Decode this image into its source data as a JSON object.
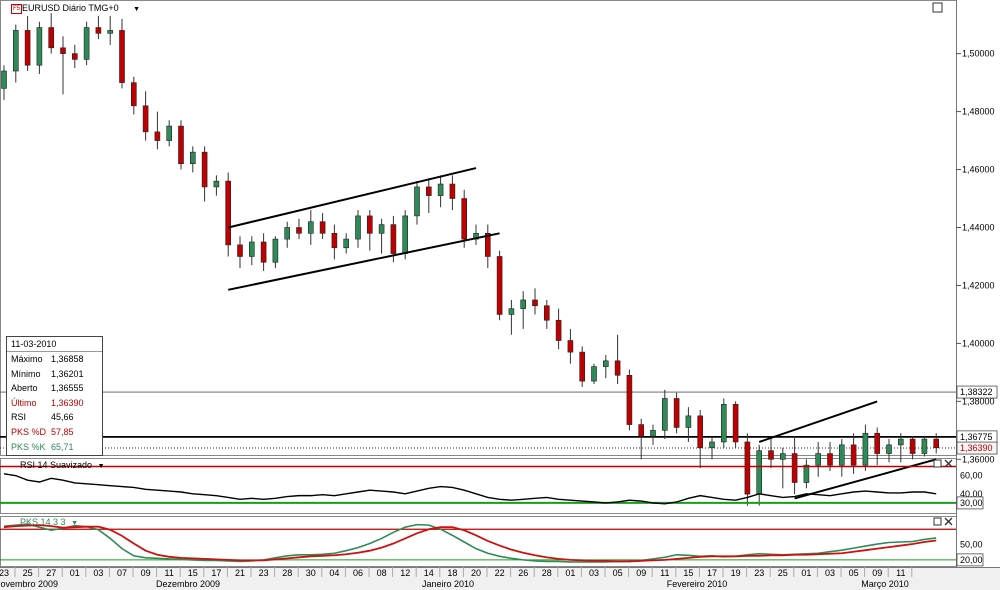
{
  "window": {
    "title": "EURUSD Diário TMG+0",
    "badge": "F5",
    "dropdown_arrow": "▼"
  },
  "info_box": {
    "date": "11-03-2010",
    "rows": [
      {
        "label": "Máximo",
        "value": "1,36858",
        "color": "#000000"
      },
      {
        "label": "Mínimo",
        "value": "1,36201",
        "color": "#000000"
      },
      {
        "label": "Aberto",
        "value": "1,36555",
        "color": "#000000"
      },
      {
        "label": "Último",
        "value": "1,36390",
        "color": "#c00000"
      },
      {
        "label": "RSI",
        "value": "45,66",
        "color": "#000000"
      },
      {
        "label": "PKS %D",
        "value": "57,85",
        "color": "#c00000"
      },
      {
        "label": "PKS %K",
        "value": "65,71",
        "color": "#2e8b57"
      }
    ]
  },
  "rsi_panel": {
    "title": "RSI 14 Suavizado",
    "levels": [
      "60,00",
      "40,00",
      "30,00"
    ]
  },
  "stoch_panel": {
    "title": "PKS 14 3 3",
    "levels": [
      "50,00",
      "20,00"
    ]
  },
  "window_icons": [
    "close-icon",
    "maximize-icon"
  ],
  "chart_data": {
    "type": "candlestick",
    "y_axis_ticks": [
      "1,50000",
      "1,48000",
      "1,46000",
      "1,44000",
      "1,42000",
      "1,40000",
      "1,38000",
      "1,36000"
    ],
    "ylim": [
      1.3615,
      1.5185
    ],
    "price_lines": [
      {
        "value": 1.38322,
        "label": "1,38322",
        "style": "thin"
      },
      {
        "value": 1.36775,
        "label": "1,36775",
        "style": "thick"
      },
      {
        "value": 1.3639,
        "label": "1,36390",
        "style": "dotted"
      }
    ],
    "date_labels": [
      "23",
      "25",
      "27",
      "01",
      "03",
      "07",
      "09",
      "11",
      "15",
      "17",
      "21",
      "23",
      "28",
      "30",
      "04",
      "06",
      "08",
      "12",
      "14",
      "18",
      "20",
      "22",
      "26",
      "28",
      "01",
      "03",
      "05",
      "09",
      "11",
      "15",
      "17",
      "19",
      "23",
      "25",
      "01",
      "03",
      "05",
      "09",
      "11"
    ],
    "month_labels": [
      "Novembro 2009",
      "Dezembro 2009",
      "Janeiro 2010",
      "Fevereiro 2010",
      "Março 2010"
    ],
    "candles": [
      {
        "o": 1.488,
        "h": 1.496,
        "l": 1.484,
        "c": 1.494
      },
      {
        "o": 1.494,
        "h": 1.51,
        "l": 1.49,
        "c": 1.508
      },
      {
        "o": 1.508,
        "h": 1.513,
        "l": 1.494,
        "c": 1.496
      },
      {
        "o": 1.496,
        "h": 1.511,
        "l": 1.493,
        "c": 1.509
      },
      {
        "o": 1.509,
        "h": 1.514,
        "l": 1.5,
        "c": 1.502
      },
      {
        "o": 1.502,
        "h": 1.506,
        "l": 1.486,
        "c": 1.5
      },
      {
        "o": 1.5,
        "h": 1.503,
        "l": 1.495,
        "c": 1.498
      },
      {
        "o": 1.498,
        "h": 1.511,
        "l": 1.496,
        "c": 1.509
      },
      {
        "o": 1.509,
        "h": 1.513,
        "l": 1.505,
        "c": 1.507
      },
      {
        "o": 1.507,
        "h": 1.513,
        "l": 1.503,
        "c": 1.508
      },
      {
        "o": 1.508,
        "h": 1.512,
        "l": 1.488,
        "c": 1.49
      },
      {
        "o": 1.49,
        "h": 1.492,
        "l": 1.479,
        "c": 1.482
      },
      {
        "o": 1.482,
        "h": 1.487,
        "l": 1.47,
        "c": 1.473
      },
      {
        "o": 1.473,
        "h": 1.48,
        "l": 1.467,
        "c": 1.47
      },
      {
        "o": 1.47,
        "h": 1.477,
        "l": 1.468,
        "c": 1.475
      },
      {
        "o": 1.475,
        "h": 1.477,
        "l": 1.46,
        "c": 1.462
      },
      {
        "o": 1.462,
        "h": 1.468,
        "l": 1.459,
        "c": 1.466
      },
      {
        "o": 1.466,
        "h": 1.468,
        "l": 1.449,
        "c": 1.454
      },
      {
        "o": 1.454,
        "h": 1.458,
        "l": 1.451,
        "c": 1.456
      },
      {
        "o": 1.456,
        "h": 1.459,
        "l": 1.43,
        "c": 1.434
      },
      {
        "o": 1.434,
        "h": 1.437,
        "l": 1.426,
        "c": 1.43
      },
      {
        "o": 1.43,
        "h": 1.437,
        "l": 1.427,
        "c": 1.435
      },
      {
        "o": 1.435,
        "h": 1.438,
        "l": 1.425,
        "c": 1.428
      },
      {
        "o": 1.428,
        "h": 1.437,
        "l": 1.426,
        "c": 1.436
      },
      {
        "o": 1.436,
        "h": 1.442,
        "l": 1.433,
        "c": 1.44
      },
      {
        "o": 1.44,
        "h": 1.443,
        "l": 1.436,
        "c": 1.438
      },
      {
        "o": 1.438,
        "h": 1.446,
        "l": 1.434,
        "c": 1.442
      },
      {
        "o": 1.442,
        "h": 1.445,
        "l": 1.436,
        "c": 1.438
      },
      {
        "o": 1.438,
        "h": 1.441,
        "l": 1.429,
        "c": 1.433
      },
      {
        "o": 1.433,
        "h": 1.438,
        "l": 1.431,
        "c": 1.436
      },
      {
        "o": 1.436,
        "h": 1.446,
        "l": 1.433,
        "c": 1.444
      },
      {
        "o": 1.444,
        "h": 1.446,
        "l": 1.432,
        "c": 1.438
      },
      {
        "o": 1.438,
        "h": 1.443,
        "l": 1.431,
        "c": 1.441
      },
      {
        "o": 1.441,
        "h": 1.444,
        "l": 1.428,
        "c": 1.431
      },
      {
        "o": 1.431,
        "h": 1.446,
        "l": 1.429,
        "c": 1.444
      },
      {
        "o": 1.444,
        "h": 1.456,
        "l": 1.441,
        "c": 1.454
      },
      {
        "o": 1.454,
        "h": 1.457,
        "l": 1.445,
        "c": 1.451
      },
      {
        "o": 1.451,
        "h": 1.458,
        "l": 1.447,
        "c": 1.455
      },
      {
        "o": 1.455,
        "h": 1.458,
        "l": 1.446,
        "c": 1.45
      },
      {
        "o": 1.45,
        "h": 1.453,
        "l": 1.433,
        "c": 1.436
      },
      {
        "o": 1.436,
        "h": 1.441,
        "l": 1.434,
        "c": 1.438
      },
      {
        "o": 1.438,
        "h": 1.441,
        "l": 1.426,
        "c": 1.43
      },
      {
        "o": 1.43,
        "h": 1.432,
        "l": 1.408,
        "c": 1.41
      },
      {
        "o": 1.41,
        "h": 1.415,
        "l": 1.403,
        "c": 1.412
      },
      {
        "o": 1.412,
        "h": 1.418,
        "l": 1.405,
        "c": 1.415
      },
      {
        "o": 1.415,
        "h": 1.419,
        "l": 1.41,
        "c": 1.413
      },
      {
        "o": 1.413,
        "h": 1.415,
        "l": 1.405,
        "c": 1.408
      },
      {
        "o": 1.408,
        "h": 1.412,
        "l": 1.398,
        "c": 1.401
      },
      {
        "o": 1.401,
        "h": 1.405,
        "l": 1.393,
        "c": 1.397
      },
      {
        "o": 1.397,
        "h": 1.399,
        "l": 1.385,
        "c": 1.387
      },
      {
        "o": 1.387,
        "h": 1.393,
        "l": 1.386,
        "c": 1.392
      },
      {
        "o": 1.392,
        "h": 1.396,
        "l": 1.388,
        "c": 1.394
      },
      {
        "o": 1.394,
        "h": 1.403,
        "l": 1.386,
        "c": 1.389
      },
      {
        "o": 1.389,
        "h": 1.391,
        "l": 1.37,
        "c": 1.372
      },
      {
        "o": 1.372,
        "h": 1.374,
        "l": 1.36,
        "c": 1.368
      },
      {
        "o": 1.368,
        "h": 1.372,
        "l": 1.365,
        "c": 1.37
      },
      {
        "o": 1.37,
        "h": 1.384,
        "l": 1.367,
        "c": 1.381
      },
      {
        "o": 1.381,
        "h": 1.383,
        "l": 1.369,
        "c": 1.371
      },
      {
        "o": 1.371,
        "h": 1.378,
        "l": 1.366,
        "c": 1.375
      },
      {
        "o": 1.375,
        "h": 1.377,
        "l": 1.357,
        "c": 1.364
      },
      {
        "o": 1.364,
        "h": 1.368,
        "l": 1.36,
        "c": 1.366
      },
      {
        "o": 1.366,
        "h": 1.381,
        "l": 1.364,
        "c": 1.379
      },
      {
        "o": 1.379,
        "h": 1.38,
        "l": 1.364,
        "c": 1.366
      },
      {
        "o": 1.366,
        "h": 1.369,
        "l": 1.344,
        "c": 1.348
      },
      {
        "o": 1.348,
        "h": 1.365,
        "l": 1.344,
        "c": 1.363
      },
      {
        "o": 1.363,
        "h": 1.368,
        "l": 1.357,
        "c": 1.36
      },
      {
        "o": 1.36,
        "h": 1.364,
        "l": 1.35,
        "c": 1.362
      },
      {
        "o": 1.362,
        "h": 1.368,
        "l": 1.348,
        "c": 1.352
      },
      {
        "o": 1.352,
        "h": 1.36,
        "l": 1.35,
        "c": 1.358
      },
      {
        "o": 1.358,
        "h": 1.366,
        "l": 1.354,
        "c": 1.362
      },
      {
        "o": 1.362,
        "h": 1.366,
        "l": 1.356,
        "c": 1.358
      },
      {
        "o": 1.358,
        "h": 1.367,
        "l": 1.354,
        "c": 1.365
      },
      {
        "o": 1.365,
        "h": 1.369,
        "l": 1.355,
        "c": 1.358
      },
      {
        "o": 1.358,
        "h": 1.372,
        "l": 1.356,
        "c": 1.369
      },
      {
        "o": 1.369,
        "h": 1.371,
        "l": 1.358,
        "c": 1.362
      },
      {
        "o": 1.362,
        "h": 1.367,
        "l": 1.359,
        "c": 1.365
      },
      {
        "o": 1.365,
        "h": 1.369,
        "l": 1.359,
        "c": 1.367
      },
      {
        "o": 1.367,
        "h": 1.368,
        "l": 1.36,
        "c": 1.362
      },
      {
        "o": 1.362,
        "h": 1.368,
        "l": 1.361,
        "c": 1.367
      },
      {
        "o": 1.367,
        "h": 1.369,
        "l": 1.362,
        "c": 1.364
      }
    ],
    "trendlines": [
      {
        "from": {
          "i": 19,
          "v": 1.44
        },
        "to": {
          "i": 40,
          "v": 1.4605
        }
      },
      {
        "from": {
          "i": 19,
          "v": 1.4185
        },
        "to": {
          "i": 42,
          "v": 1.438
        }
      },
      {
        "from": {
          "i": 64,
          "v": 1.366
        },
        "to": {
          "i": 74,
          "v": 1.38
        }
      },
      {
        "from": {
          "i": 67,
          "v": 1.3465
        },
        "to": {
          "i": 79,
          "v": 1.36
        }
      }
    ],
    "rsi": {
      "ylim": [
        20,
        75
      ],
      "levels": [
        70,
        30
      ],
      "values": [
        62,
        60,
        55,
        53,
        57,
        55,
        52,
        51,
        50,
        49,
        48,
        47,
        45,
        44,
        43,
        42,
        40,
        39,
        38,
        36,
        34,
        35,
        34,
        35,
        37,
        38,
        38,
        39,
        38,
        40,
        42,
        44,
        43,
        42,
        40,
        43,
        46,
        48,
        47,
        44,
        40,
        36,
        34,
        33,
        34,
        35,
        36,
        34,
        33,
        32,
        31,
        30,
        31,
        33,
        32,
        30,
        29,
        31,
        35,
        38,
        36,
        34,
        33,
        36,
        40,
        38,
        36,
        37,
        40,
        39,
        38,
        40,
        42,
        43,
        42,
        41,
        41,
        42,
        42,
        40
      ]
    },
    "stoch": {
      "ylim": [
        10,
        100
      ],
      "levels": [
        80,
        20
      ],
      "k": [
        86,
        88,
        90,
        84,
        78,
        82,
        87,
        85,
        79,
        62,
        42,
        28,
        24,
        23,
        22,
        21,
        20,
        19,
        19,
        18,
        17,
        18,
        20,
        24,
        28,
        30,
        30,
        31,
        33,
        38,
        44,
        52,
        62,
        74,
        84,
        89,
        88,
        80,
        68,
        55,
        42,
        33,
        27,
        23,
        20,
        18,
        17,
        17,
        16,
        16,
        16,
        16,
        17,
        18,
        19,
        22,
        25,
        30,
        29,
        27,
        28,
        26,
        27,
        30,
        32,
        31,
        30,
        31,
        32,
        33,
        36,
        39,
        43,
        47,
        51,
        54,
        55,
        56,
        60,
        63
      ],
      "d": [
        84,
        86,
        87,
        88,
        86,
        83,
        84,
        85,
        85,
        79,
        67,
        52,
        38,
        30,
        26,
        24,
        23,
        22,
        21,
        20,
        19,
        19,
        19,
        21,
        23,
        25,
        27,
        28,
        29,
        31,
        34,
        38,
        44,
        52,
        62,
        72,
        80,
        84,
        84,
        78,
        68,
        57,
        48,
        40,
        34,
        29,
        25,
        22,
        20,
        19,
        18,
        18,
        17,
        17,
        18,
        19,
        20,
        22,
        24,
        26,
        27,
        27,
        27,
        28,
        28,
        29,
        29,
        30,
        30,
        31,
        32,
        33,
        36,
        39,
        42,
        45,
        48,
        51,
        55,
        58
      ]
    }
  }
}
